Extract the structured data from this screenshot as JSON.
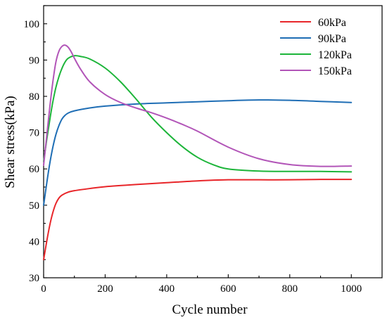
{
  "chart_data": {
    "type": "line",
    "title": "",
    "xlabel": "Cycle number",
    "ylabel": "Shear stress(kPa)",
    "xlim": [
      0,
      1100
    ],
    "ylim": [
      30,
      105
    ],
    "xticks": [
      0,
      200,
      400,
      600,
      800,
      1000
    ],
    "yticks": [
      30,
      40,
      50,
      60,
      70,
      80,
      90,
      100
    ],
    "grid": false,
    "legend_position": "top-right",
    "series": [
      {
        "name": "60kPa",
        "color": "#e8262a",
        "x": [
          0,
          10,
          20,
          30,
          40,
          50,
          60,
          80,
          100,
          150,
          200,
          300,
          400,
          500,
          600,
          700,
          800,
          900,
          1000
        ],
        "y": [
          35.0,
          40.0,
          44.5,
          48.0,
          50.5,
          52.0,
          52.8,
          53.6,
          54.0,
          54.6,
          55.1,
          55.7,
          56.2,
          56.7,
          57.0,
          57.0,
          57.0,
          57.1,
          57.1
        ]
      },
      {
        "name": "90kPa",
        "color": "#1f6eb5",
        "x": [
          0,
          10,
          20,
          30,
          40,
          50,
          60,
          70,
          80,
          100,
          150,
          200,
          300,
          400,
          500,
          600,
          700,
          800,
          900,
          1000
        ],
        "y": [
          50.0,
          56.0,
          61.5,
          66.0,
          69.5,
          72.0,
          73.8,
          74.8,
          75.4,
          76.0,
          76.8,
          77.3,
          77.9,
          78.2,
          78.5,
          78.8,
          79.0,
          78.9,
          78.6,
          78.3
        ]
      },
      {
        "name": "120kPa",
        "color": "#1db53a",
        "x": [
          0,
          10,
          20,
          30,
          40,
          50,
          60,
          70,
          80,
          100,
          120,
          150,
          200,
          250,
          300,
          350,
          400,
          450,
          500,
          550,
          600,
          700,
          800,
          900,
          1000
        ],
        "y": [
          62.0,
          68.0,
          73.5,
          78.5,
          82.5,
          85.5,
          87.8,
          89.5,
          90.5,
          91.2,
          91.0,
          90.3,
          87.8,
          84.0,
          79.3,
          74.3,
          70.0,
          66.2,
          63.2,
          61.2,
          60.0,
          59.4,
          59.3,
          59.3,
          59.2
        ]
      },
      {
        "name": "150kPa",
        "color": "#b255b8",
        "x": [
          0,
          10,
          20,
          30,
          40,
          50,
          60,
          70,
          80,
          90,
          100,
          120,
          150,
          200,
          250,
          300,
          350,
          400,
          450,
          500,
          600,
          700,
          800,
          900,
          1000
        ],
        "y": [
          61.0,
          69.0,
          77.0,
          84.0,
          89.5,
          92.5,
          93.8,
          94.1,
          93.5,
          92.2,
          90.5,
          87.5,
          84.0,
          80.5,
          78.3,
          76.8,
          75.5,
          74.0,
          72.3,
          70.4,
          66.0,
          62.8,
          61.2,
          60.7,
          60.8
        ]
      }
    ]
  }
}
